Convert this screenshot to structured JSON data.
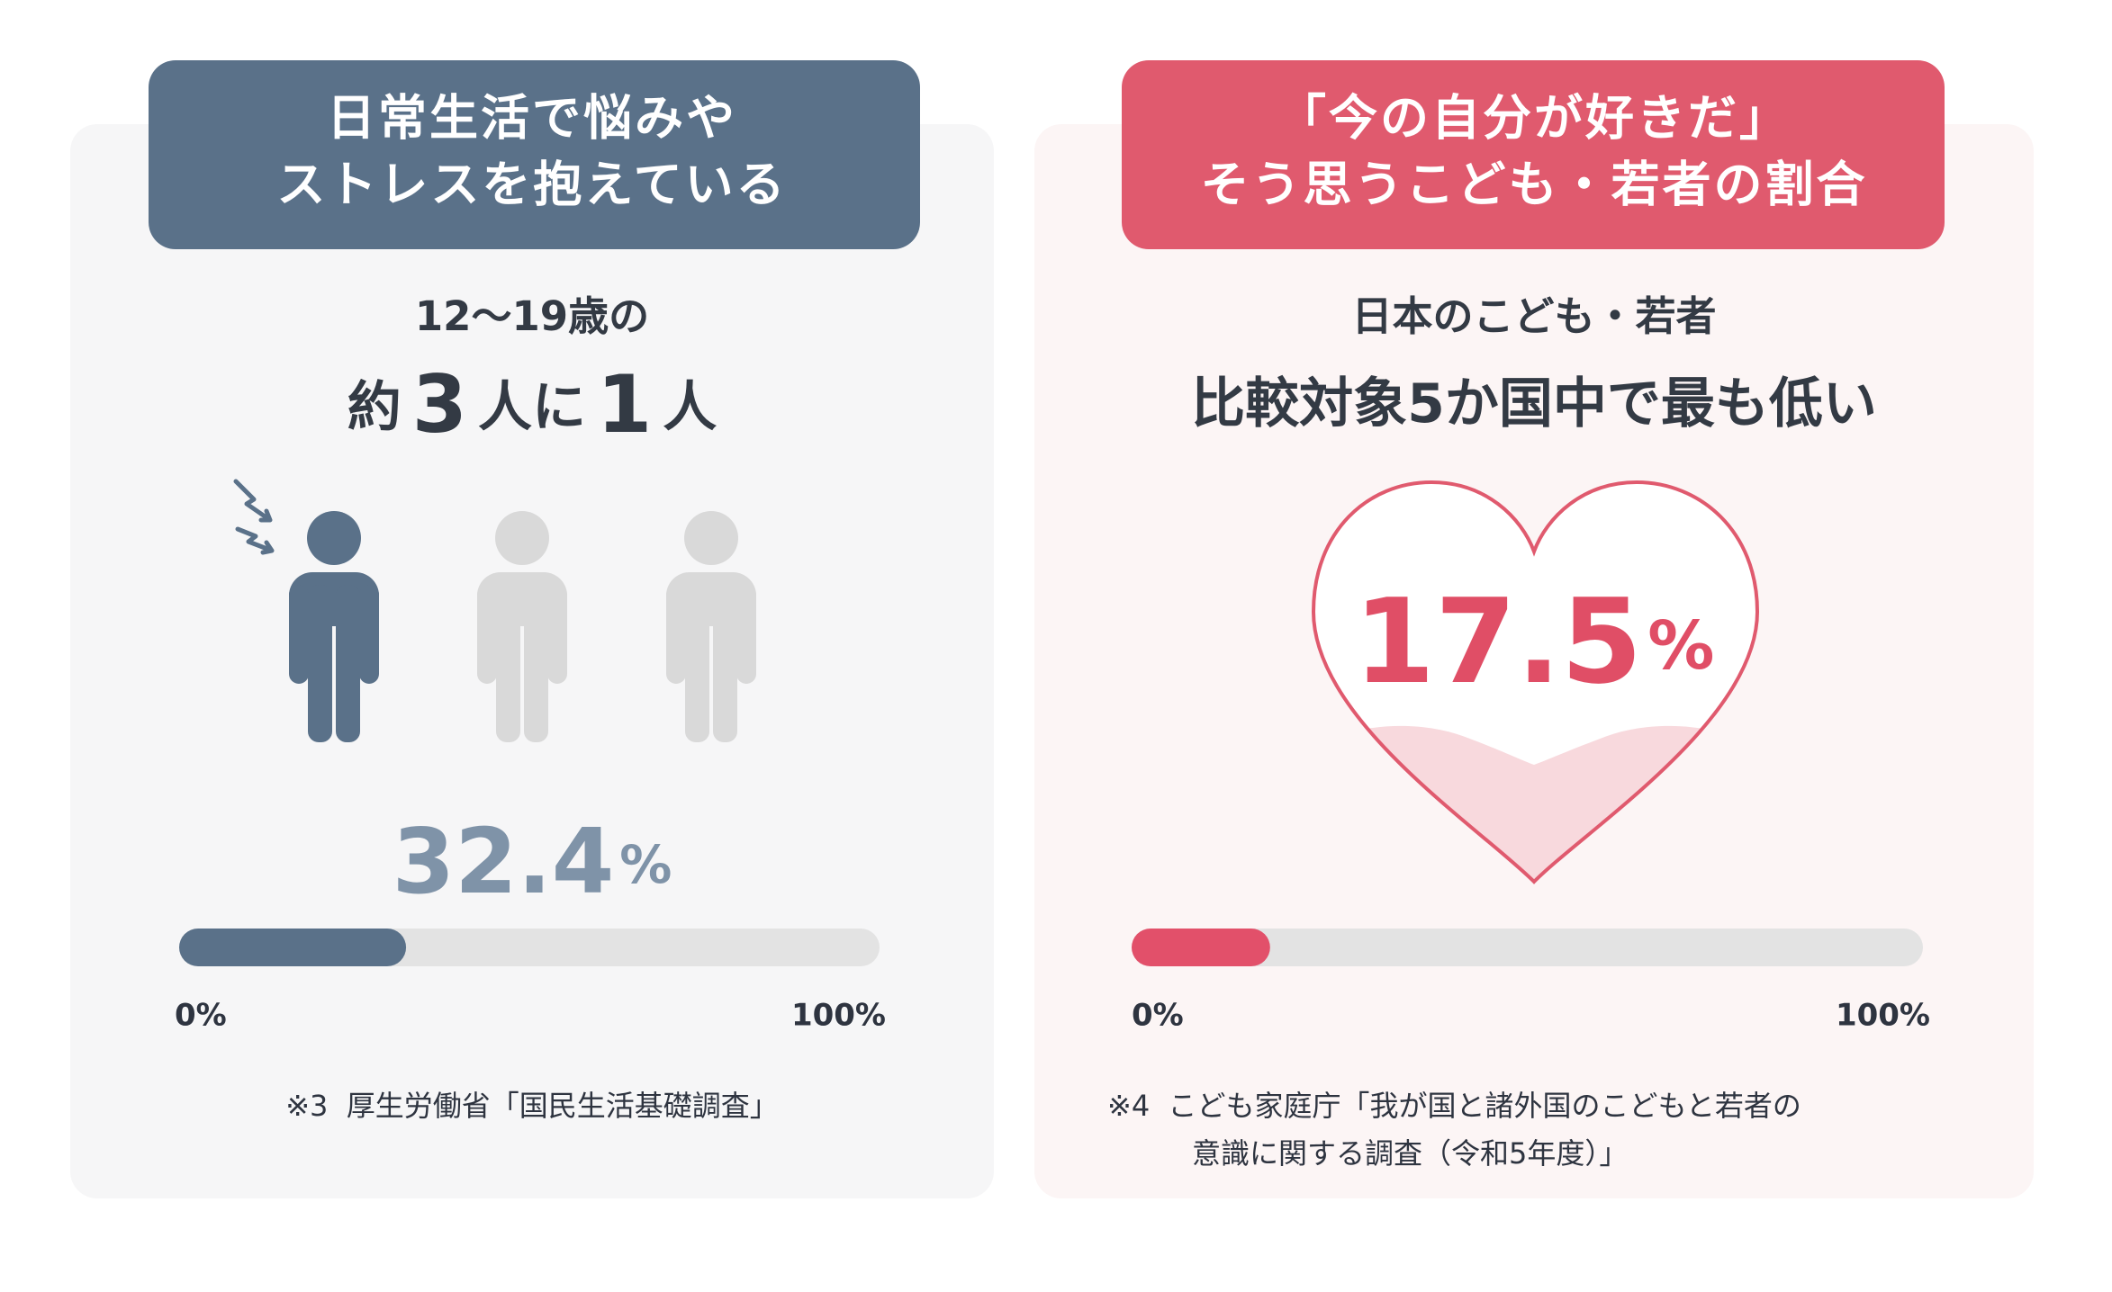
{
  "cards": [
    {
      "header": [
        "日常生活で悩みや",
        "ストレスを抱えている"
      ],
      "subtitle": "12〜19歳の",
      "headline": [
        "約",
        "3",
        "人に",
        "1",
        "人"
      ],
      "value": 32.4,
      "unit": "%",
      "color": "#5a7189",
      "scale": [
        {
          "value": 0,
          "label": "0%"
        },
        {
          "value": 100,
          "label": "100%"
        }
      ],
      "note": [
        "※3  厚生労働省「国民生活基礎調査」"
      ]
    },
    {
      "header": [
        "「今の自分が好きだ」",
        "そう思うこども・若者の割合"
      ],
      "subtitle": "日本のこども・若者",
      "headline": [
        "比較対象5か国中で最も低い"
      ],
      "value": 17.5,
      "unit": "%",
      "color": "#e2506a",
      "scale": [
        {
          "value": 0,
          "label": "0%"
        },
        {
          "value": 100,
          "label": "100%"
        }
      ],
      "note": [
        "※4  こども家庭庁「我が国と諸外国のこどもと若者の",
        "意識に関する調査（令和5年度）」"
      ]
    }
  ]
}
